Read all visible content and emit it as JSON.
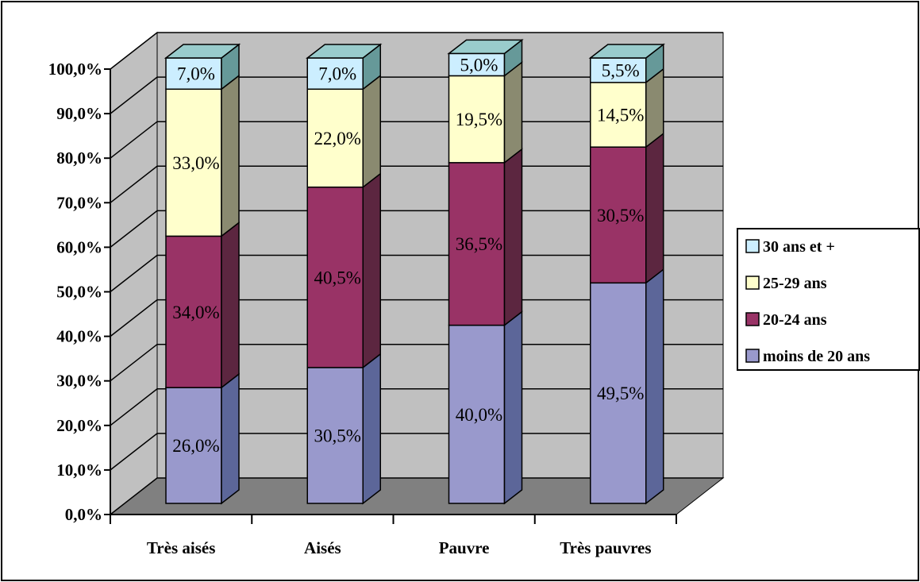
{
  "chart_data": {
    "type": "bar",
    "stacked": true,
    "three_d": true,
    "categories": [
      "Très aisés",
      "Aisés",
      "Pauvre",
      "Très pauvres"
    ],
    "series": [
      {
        "name": "moins de 20 ans",
        "values": [
          26.0,
          30.5,
          40.0,
          49.5
        ],
        "labels": [
          "26,0%",
          "30,5%",
          "40,0%",
          "49,5%"
        ],
        "color": "#9999cc",
        "side_color": "#5c6699"
      },
      {
        "name": "20-24 ans",
        "values": [
          34.0,
          40.5,
          36.5,
          30.5
        ],
        "labels": [
          "34,0%",
          "40,5%",
          "36,5%",
          "30,5%"
        ],
        "color": "#993366",
        "side_color": "#5c2640"
      },
      {
        "name": "25-29 ans",
        "values": [
          33.0,
          22.0,
          19.5,
          14.5
        ],
        "labels": [
          "33,0%",
          "22,0%",
          "19,5%",
          "14,5%"
        ],
        "color": "#ffffcc",
        "side_color": "#8a8a70"
      },
      {
        "name": "30 ans et +",
        "values": [
          7.0,
          7.0,
          5.0,
          5.5
        ],
        "labels": [
          "7,0%",
          "7,0%",
          "5,0%",
          "5,5%"
        ],
        "color": "#cceeff",
        "side_color": "#669999"
      }
    ],
    "y_ticks": [
      "0,0%",
      "10,0%",
      "20,0%",
      "30,0%",
      "40,0%",
      "50,0%",
      "60,0%",
      "70,0%",
      "80,0%",
      "90,0%",
      "100,0%"
    ],
    "ylim": [
      0,
      100
    ],
    "grid": true,
    "legend_position": "right",
    "wall_color": "#c0c0c0",
    "floor_color": "#808080"
  }
}
